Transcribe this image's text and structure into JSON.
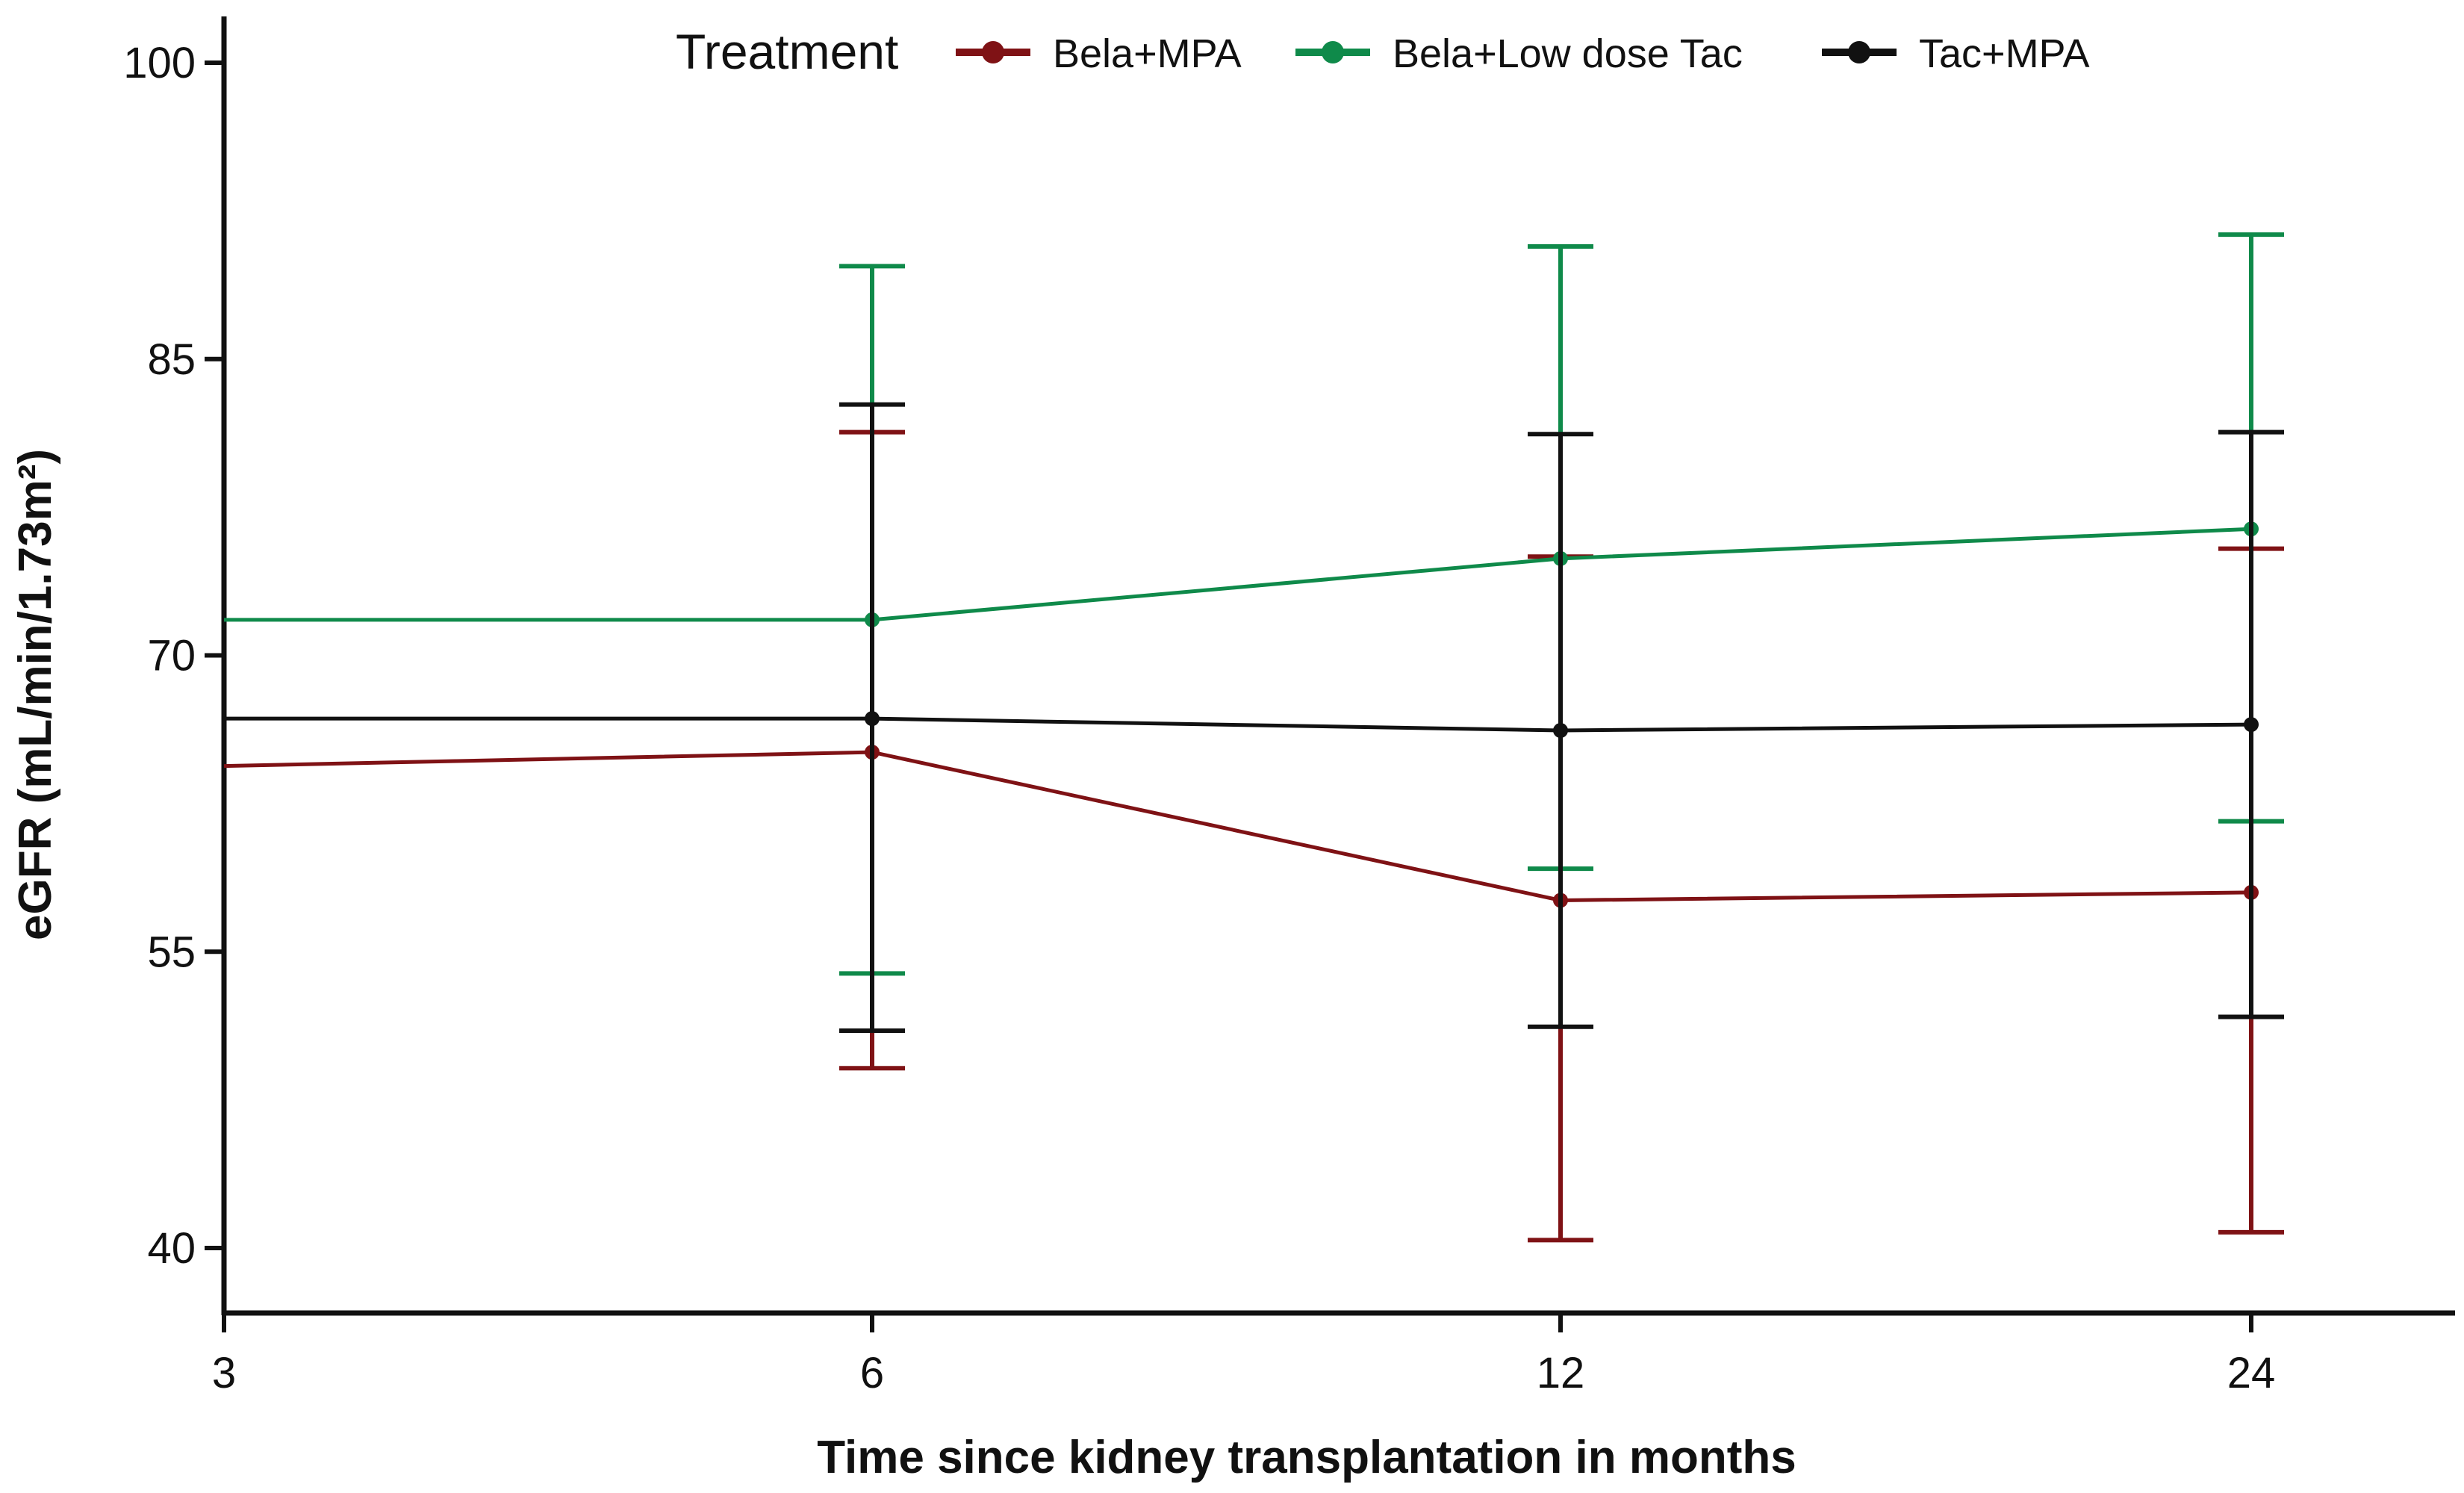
{
  "chart_data": {
    "type": "line",
    "title": "",
    "xlabel": "Time since kidney transplantation in months",
    "ylabel": "eGFR (mL/min/1.73m²)",
    "categories": [
      "3",
      "6",
      "12",
      "24"
    ],
    "ylim": [
      37,
      102
    ],
    "yticks": [
      40,
      55,
      70,
      85,
      100
    ],
    "ytick_labels": [
      "40",
      "55",
      "70",
      "85",
      "100"
    ],
    "grid": false,
    "legend": {
      "title": "Treatment",
      "position": "top-center"
    },
    "series": [
      {
        "name": "Bela+MPA",
        "color": "#7f1215",
        "values": [
          64.4,
          65.1,
          57.6,
          58.0
        ],
        "err_low": [
          null,
          49.1,
          40.4,
          40.8
        ],
        "err_high": [
          null,
          81.3,
          75.0,
          75.4
        ]
      },
      {
        "name": "Bela+Low dose Tac",
        "color": "#0f8a4a",
        "values": [
          71.8,
          71.8,
          74.9,
          76.4
        ],
        "err_low": [
          null,
          53.9,
          59.2,
          61.6
        ],
        "err_high": [
          null,
          89.7,
          90.7,
          91.3
        ]
      },
      {
        "name": "Tac+MPA",
        "color": "#111111",
        "values": [
          66.8,
          66.8,
          66.2,
          66.5
        ],
        "err_low": [
          null,
          51.0,
          51.2,
          51.7
        ],
        "err_high": [
          null,
          82.7,
          81.2,
          81.3
        ]
      }
    ]
  }
}
